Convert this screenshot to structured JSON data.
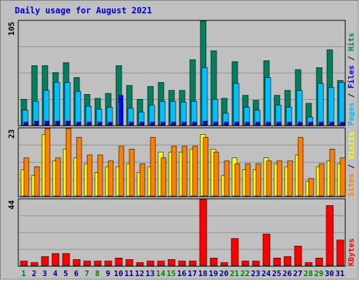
{
  "title": "Daily usage for August 2021",
  "colors": {
    "background": "#c0c0c0",
    "grid": "#808080",
    "hits": "#008060",
    "files": "#00c0ff",
    "pages": "#0000ff",
    "visits": "#ffff00",
    "sites": "#ff8000",
    "kbytes": "#ff0000",
    "weekend_day": "#008000",
    "weekday": "#000080",
    "title": "#0000cc"
  },
  "chart_data": [
    {
      "type": "bar",
      "panel": "hits-files-pages",
      "ymax_label": "105",
      "ymax": 105,
      "legend": [
        "Pages",
        "/",
        "Files",
        "/",
        "Hits"
      ],
      "categories": [
        "1",
        "2",
        "3",
        "4",
        "5",
        "6",
        "7",
        "8",
        "9",
        "10",
        "11",
        "12",
        "13",
        "14",
        "15",
        "16",
        "17",
        "18",
        "19",
        "20",
        "21",
        "22",
        "23",
        "24",
        "25",
        "26",
        "27",
        "28",
        "29",
        "30",
        "31"
      ],
      "series": [
        {
          "name": "Hits",
          "values": [
            26,
            60,
            60,
            53,
            63,
            48,
            31,
            27,
            32,
            60,
            40,
            26,
            39,
            43,
            35,
            35,
            66,
            105,
            75,
            27,
            64,
            30,
            25,
            65,
            30,
            35,
            56,
            22,
            58,
            76,
            45
          ]
        },
        {
          "name": "Files",
          "values": [
            15,
            24,
            35,
            43,
            43,
            34,
            19,
            16,
            18,
            23,
            17,
            13,
            20,
            24,
            24,
            23,
            24,
            58,
            26,
            12,
            42,
            18,
            15,
            48,
            20,
            18,
            35,
            8,
            42,
            38,
            43
          ]
        },
        {
          "name": "Pages",
          "values": [
            3,
            4,
            4,
            4,
            4,
            3,
            3,
            3,
            3,
            30,
            3,
            3,
            3,
            3,
            3,
            3,
            3,
            4,
            3,
            3,
            3,
            3,
            3,
            3,
            3,
            3,
            3,
            3,
            3,
            3,
            3
          ]
        }
      ]
    },
    {
      "type": "bar",
      "panel": "visits-sites",
      "ymax_label": "23",
      "ymax": 23,
      "legend": [
        "Sites",
        "/",
        "Visits"
      ],
      "categories": [
        "1",
        "2",
        "3",
        "4",
        "5",
        "6",
        "7",
        "8",
        "9",
        "10",
        "11",
        "12",
        "13",
        "14",
        "15",
        "16",
        "17",
        "18",
        "19",
        "20",
        "21",
        "22",
        "23",
        "24",
        "25",
        "26",
        "27",
        "28",
        "29",
        "30",
        "31"
      ],
      "series": [
        {
          "name": "Visits",
          "values": [
            9,
            7,
            21,
            12,
            16,
            13,
            11,
            8,
            10,
            10,
            11,
            8,
            10,
            15,
            15,
            15,
            16,
            21,
            16,
            7,
            13,
            9,
            9,
            13,
            11,
            10,
            14,
            5,
            10,
            12,
            11
          ]
        },
        {
          "name": "Sites",
          "values": [
            13,
            10,
            23,
            13,
            23,
            20,
            14,
            14,
            12,
            17,
            16,
            11,
            20,
            13,
            17,
            17,
            17,
            20,
            15,
            12,
            11,
            11,
            11,
            12,
            12,
            12,
            20,
            6,
            11,
            16,
            13
          ]
        }
      ]
    },
    {
      "type": "bar",
      "panel": "kbytes",
      "ymax_label": "44",
      "ymax": 44,
      "legend": [
        "KBytes"
      ],
      "categories": [
        "1",
        "2",
        "3",
        "4",
        "5",
        "6",
        "7",
        "8",
        "9",
        "10",
        "11",
        "12",
        "13",
        "14",
        "15",
        "16",
        "17",
        "18",
        "19",
        "20",
        "21",
        "22",
        "23",
        "24",
        "25",
        "26",
        "27",
        "28",
        "29",
        "30",
        "31"
      ],
      "series": [
        {
          "name": "KBytes",
          "values": [
            3,
            2,
            6,
            8,
            8,
            4,
            3,
            3,
            3,
            5,
            4,
            2,
            3,
            3,
            4,
            3,
            3,
            44,
            5,
            2,
            18,
            3,
            3,
            21,
            5,
            6,
            13,
            2,
            5,
            40,
            17
          ]
        }
      ]
    }
  ],
  "weekend_days": [
    1,
    7,
    8,
    14,
    15,
    21,
    22,
    28,
    29
  ]
}
